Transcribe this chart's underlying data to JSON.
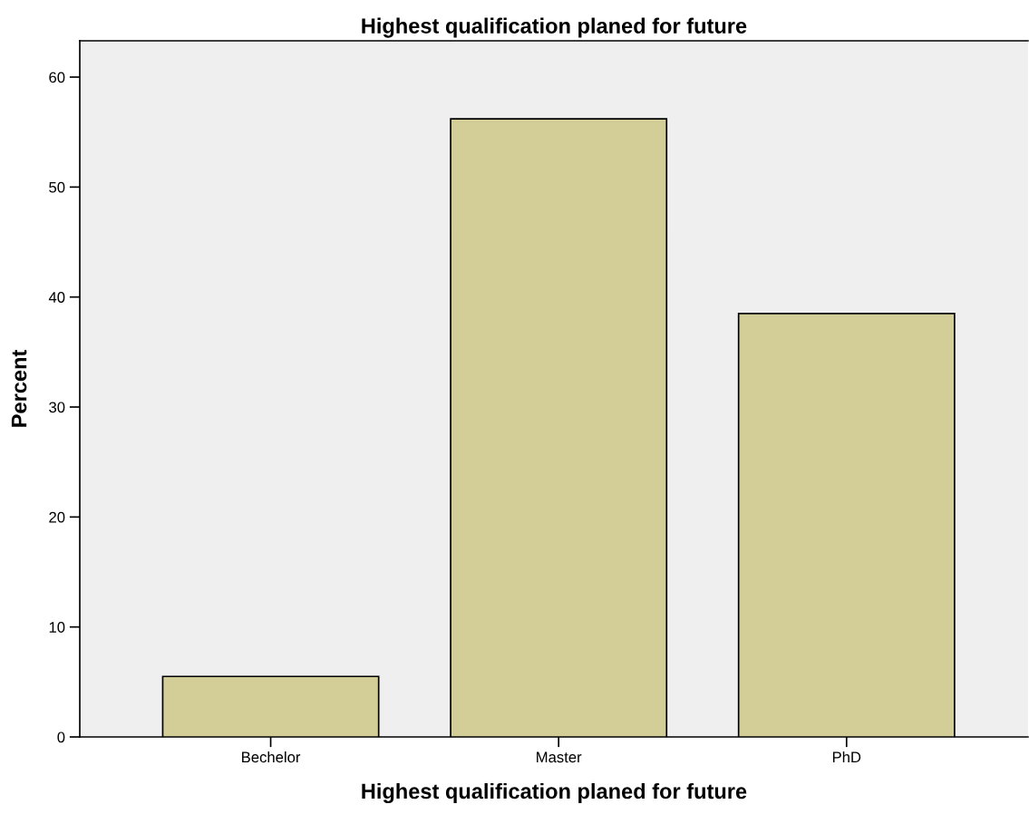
{
  "chart_data": {
    "type": "bar",
    "title": "Highest qualification planed for future",
    "xlabel": "Highest qualification planed for future",
    "ylabel": "Percent",
    "categories": [
      "Bechelor",
      "Master",
      "PhD"
    ],
    "values": [
      5.5,
      56.2,
      38.5
    ],
    "color": "#d3ce97",
    "ylim": [
      0,
      63.3
    ],
    "yticks": [
      0,
      10,
      20,
      30,
      40,
      50,
      60
    ],
    "grid": false
  }
}
